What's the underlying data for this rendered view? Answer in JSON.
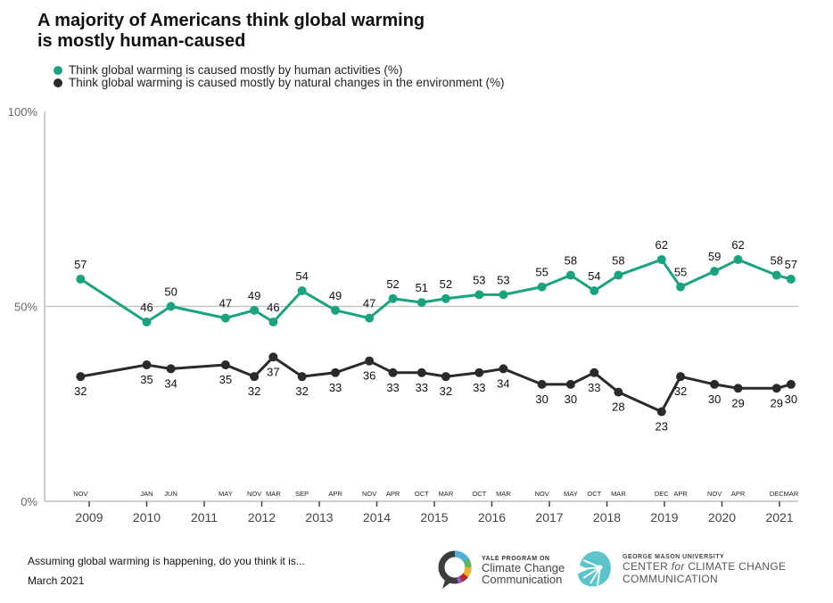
{
  "chart_data": {
    "type": "line",
    "title": "A majority of Americans think global warming is mostly human-caused",
    "title_lines": [
      "A majority of Americans think global warming",
      "is mostly human-caused"
    ],
    "xlabel": "",
    "ylabel": "",
    "ylim": [
      0,
      100
    ],
    "y_ticks": [
      {
        "value": 0,
        "label": "0%"
      },
      {
        "value": 50,
        "label": "50%"
      },
      {
        "value": 100,
        "label": "100%"
      }
    ],
    "grid": "horizontal line at 50%",
    "legend_position": "top-left",
    "x_year_ticks": [
      "2009",
      "2010",
      "2011",
      "2012",
      "2013",
      "2014",
      "2015",
      "2016",
      "2017",
      "2018",
      "2019",
      "2020",
      "2021"
    ],
    "x": [
      {
        "date": 2008.85,
        "month": "NOV"
      },
      {
        "date": 2010.0,
        "month": "JAN"
      },
      {
        "date": 2010.42,
        "month": "JUN"
      },
      {
        "date": 2011.37,
        "month": "MAY"
      },
      {
        "date": 2011.87,
        "month": "NOV"
      },
      {
        "date": 2012.2,
        "month": "MAR"
      },
      {
        "date": 2012.7,
        "month": "SEP"
      },
      {
        "date": 2013.28,
        "month": "APR"
      },
      {
        "date": 2013.87,
        "month": "NOV"
      },
      {
        "date": 2014.28,
        "month": "APR"
      },
      {
        "date": 2014.78,
        "month": "OCT"
      },
      {
        "date": 2015.2,
        "month": "MAR"
      },
      {
        "date": 2015.78,
        "month": "OCT"
      },
      {
        "date": 2016.2,
        "month": "MAR"
      },
      {
        "date": 2016.87,
        "month": "NOV"
      },
      {
        "date": 2017.37,
        "month": "MAY"
      },
      {
        "date": 2017.78,
        "month": "OCT"
      },
      {
        "date": 2018.2,
        "month": "MAR"
      },
      {
        "date": 2018.95,
        "month": "DEC"
      },
      {
        "date": 2019.28,
        "month": "APR"
      },
      {
        "date": 2019.87,
        "month": "NOV"
      },
      {
        "date": 2020.28,
        "month": "APR"
      },
      {
        "date": 2020.95,
        "month": "DEC"
      },
      {
        "date": 2021.2,
        "month": "MAR"
      }
    ],
    "series": [
      {
        "name": "Think global warming is caused mostly by human activities (%)",
        "color": "#1aa37e",
        "values": [
          57,
          46,
          50,
          47,
          49,
          46,
          54,
          49,
          47,
          52,
          51,
          52,
          53,
          53,
          55,
          58,
          54,
          58,
          62,
          55,
          59,
          62,
          58,
          57
        ]
      },
      {
        "name": "Think global warming is caused mostly by natural changes in the environment (%)",
        "color": "#2a2a2a",
        "values": [
          32,
          35,
          34,
          35,
          32,
          37,
          32,
          33,
          36,
          33,
          33,
          32,
          33,
          34,
          30,
          30,
          33,
          28,
          23,
          32,
          30,
          29,
          29,
          30
        ]
      }
    ]
  },
  "legend": [
    {
      "label": "Think global warming is caused mostly by human activities (%)",
      "color": "#1aa37e"
    },
    {
      "label": "Think global warming is caused mostly by natural changes in the environment (%)",
      "color": "#2a2a2a"
    }
  ],
  "footer": {
    "question": "Assuming global warming is happening, do you think it is...",
    "date": "March 2021"
  },
  "logos": {
    "yale": {
      "small": "YALE PROGRAM ON",
      "line1": "Climate Change",
      "line2": "Communication"
    },
    "gmu": {
      "small": "GEORGE MASON UNIVERSITY",
      "line1_a": "CENTER ",
      "line1_b": "for",
      "line1_c": " CLIMATE CHANGE",
      "line2": "COMMUNICATION"
    }
  }
}
